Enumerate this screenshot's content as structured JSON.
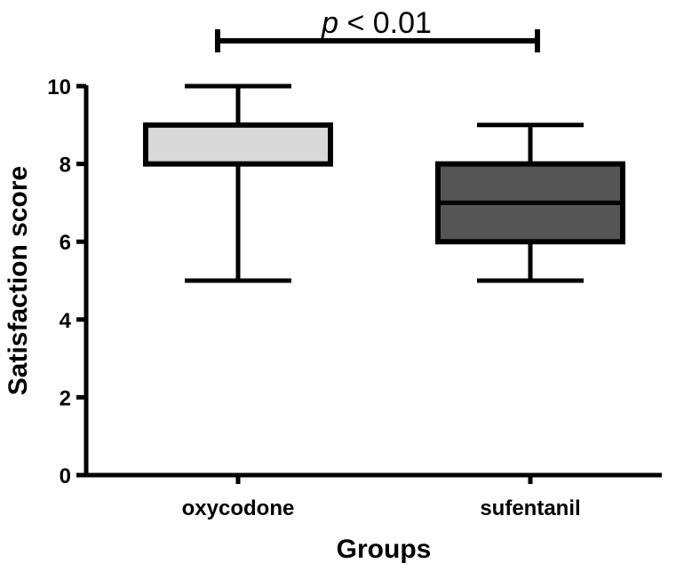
{
  "chart_data": {
    "type": "box",
    "xlabel": "Groups",
    "ylabel": "Satisfaction score",
    "ylim": [
      0,
      10
    ],
    "yticks": [
      0,
      2,
      4,
      6,
      8,
      10
    ],
    "categories": [
      "oxycodone",
      "sufentanil"
    ],
    "boxes": [
      {
        "category": "oxycodone",
        "min": 5,
        "q1": 8,
        "median": 9,
        "q3": 9,
        "max": 10,
        "color": "#d9d9d9"
      },
      {
        "category": "sufentanil",
        "min": 5,
        "q1": 6,
        "median": 7,
        "q3": 8,
        "max": 9,
        "color": "#555555"
      }
    ],
    "annotation": {
      "italic": "p",
      "text": " < 0.01"
    },
    "grid": false
  }
}
